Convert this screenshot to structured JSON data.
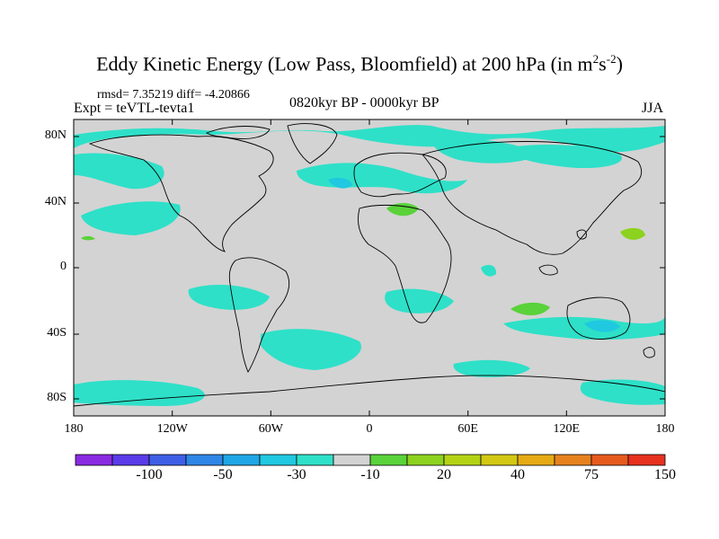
{
  "title": {
    "main": "Eddy Kinetic Energy (Low Pass, Bloomfield) at 200 hPa (in m",
    "sup1": "2",
    "mid": "s",
    "sup2": "-2",
    "end": ")"
  },
  "stats": "rmsd= 7.35219 diff= -4.20866",
  "expt": "Expt = teVTL-tevta1",
  "period": "0820kyr BP - 0000kyr BP",
  "season": "JJA",
  "map": {
    "lat_labels": [
      "80N",
      "40N",
      "0",
      "40S",
      "80S"
    ],
    "lon_labels": [
      "180",
      "120W",
      "60W",
      "0",
      "60E",
      "120E",
      "180"
    ],
    "background_color": "#d3d3d3",
    "coastline_color": "#000000"
  },
  "colorbar": {
    "colors": [
      "#8a2be2",
      "#5a3ce8",
      "#3e5fe6",
      "#2f86e6",
      "#1fa6e6",
      "#20c8e0",
      "#2ee0c8",
      "#d3d3d3",
      "#5ad23a",
      "#8cd21e",
      "#b4d214",
      "#d2c814",
      "#e6aa14",
      "#e6821e",
      "#e65a1e",
      "#e6321e"
    ],
    "labels": [
      "-100",
      "-50",
      "-30",
      "-10",
      "20",
      "40",
      "75",
      "150"
    ]
  }
}
